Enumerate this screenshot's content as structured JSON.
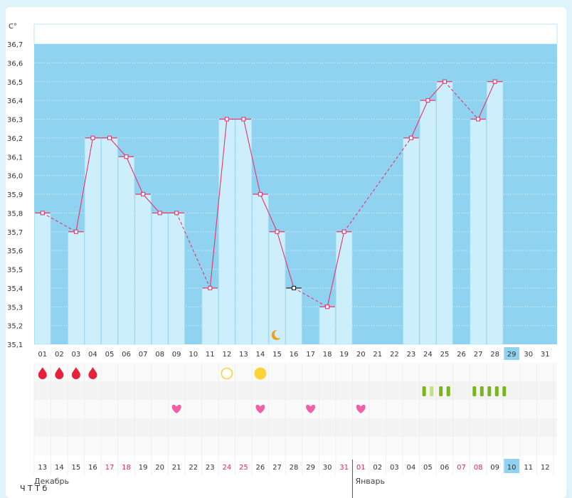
{
  "chart_data": {
    "type": "line",
    "unit_label": "C°",
    "ylim": [
      35.1,
      36.7
    ],
    "y_ticks": [
      "36,7",
      "36,6",
      "36,5",
      "36,4",
      "36,3",
      "36,2",
      "36,1",
      "36,0",
      "35,9",
      "35,8",
      "35,7",
      "35,6",
      "35,5",
      "35,4",
      "35,3",
      "35,2",
      "35,1"
    ],
    "cycle_days": [
      "01",
      "02",
      "03",
      "04",
      "05",
      "06",
      "07",
      "08",
      "09",
      "10",
      "11",
      "12",
      "13",
      "14",
      "15",
      "16",
      "17",
      "18",
      "19",
      "20",
      "21",
      "22",
      "23",
      "24",
      "25",
      "26",
      "27",
      "28",
      "29",
      "30",
      "31"
    ],
    "highlight_day": "29",
    "temperatures": [
      35.8,
      null,
      35.7,
      36.2,
      36.2,
      36.1,
      35.9,
      35.8,
      35.8,
      null,
      35.4,
      36.3,
      36.3,
      35.9,
      35.7,
      35.4,
      null,
      35.3,
      35.7,
      null,
      null,
      null,
      36.2,
      36.4,
      36.5,
      null,
      36.3,
      36.5,
      null,
      null,
      null
    ],
    "special_marker_day": "16",
    "menstruation_days": [
      "01",
      "02",
      "03",
      "04"
    ],
    "open_circle_day": "12",
    "filled_circle_day": "14",
    "moon_day": "15",
    "heart_days": [
      "09",
      "14",
      "17",
      "20"
    ],
    "bar_marks": [
      {
        "day": "24",
        "count": 2,
        "first_light": true
      },
      {
        "day": "25",
        "count": 2,
        "first_light": false
      },
      {
        "day": "27",
        "count": 5,
        "first_light": false
      }
    ],
    "calendar_dates": [
      {
        "label": "13",
        "red": false
      },
      {
        "label": "14",
        "red": false
      },
      {
        "label": "15",
        "red": false
      },
      {
        "label": "16",
        "red": false
      },
      {
        "label": "17",
        "red": true
      },
      {
        "label": "18",
        "red": true
      },
      {
        "label": "19",
        "red": false
      },
      {
        "label": "20",
        "red": false
      },
      {
        "label": "21",
        "red": false
      },
      {
        "label": "22",
        "red": false
      },
      {
        "label": "23",
        "red": false
      },
      {
        "label": "24",
        "red": true
      },
      {
        "label": "25",
        "red": true
      },
      {
        "label": "26",
        "red": false
      },
      {
        "label": "27",
        "red": false
      },
      {
        "label": "28",
        "red": false
      },
      {
        "label": "29",
        "red": false
      },
      {
        "label": "30",
        "red": false
      },
      {
        "label": "31",
        "red": true
      },
      {
        "label": "01",
        "red": true
      },
      {
        "label": "02",
        "red": false
      },
      {
        "label": "03",
        "red": false
      },
      {
        "label": "04",
        "red": false
      },
      {
        "label": "05",
        "red": false
      },
      {
        "label": "06",
        "red": false
      },
      {
        "label": "07",
        "red": true
      },
      {
        "label": "08",
        "red": true
      },
      {
        "label": "09",
        "red": false
      },
      {
        "label": "10",
        "red": false
      },
      {
        "label": "11",
        "red": false
      },
      {
        "label": "12",
        "red": false
      }
    ],
    "highlight_date": "10",
    "month_labels": [
      "Декабрь",
      "Январь"
    ]
  },
  "colors": {
    "plot_bg": "#8fd3f0",
    "bar": "#cdeefb",
    "line": "#e8356b",
    "heart": "#f25fa8",
    "drop": "#e8213a",
    "sun": "#fdd33a",
    "moon": "#f0a020",
    "green": "#7ab51d",
    "green_light": "#c3df8a"
  },
  "footer_text": "Ч                    Т                   Т   б"
}
